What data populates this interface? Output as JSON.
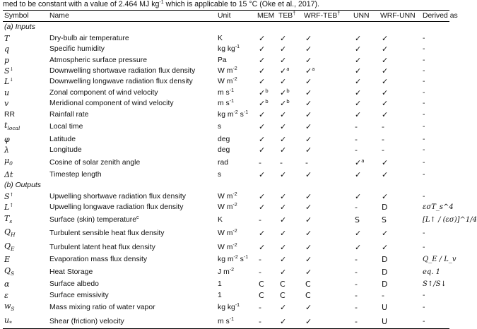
{
  "caption": {
    "text": "med to be constant with a value of 2.464 MJ kg",
    "sup": "-1",
    "text_after": " which is applicable to 15 °C (Oke et al., 2017)."
  },
  "headers": {
    "symbol": "Symbol",
    "name": "Name",
    "unit": "Unit",
    "mem": "MEM",
    "teb": "TEB",
    "teb_sup": "†",
    "wrf_teb": "WRF-TEB",
    "wrf_teb_sup": "†",
    "unn": "UNN",
    "wrf_unn": "WRF-UNN",
    "derived": "Derived as"
  },
  "sections": [
    {
      "title": "(a) Inputs",
      "rows": [
        {
          "symbol": "T",
          "name": "Dry-bulb air temperature",
          "unit": "K",
          "unit_sup": "",
          "mem": "✓",
          "teb": "✓",
          "wrf_teb": "✓",
          "unn": "✓",
          "wrf_unn": "✓",
          "derived": "-"
        },
        {
          "symbol": "q",
          "name": "Specific humidity",
          "unit": "kg kg",
          "unit_sup": "-1",
          "mem": "✓",
          "teb": "✓",
          "wrf_teb": "✓",
          "unn": "✓",
          "wrf_unn": "✓",
          "derived": "-"
        },
        {
          "symbol": "p",
          "name": "Atmospheric surface pressure",
          "unit": "Pa",
          "unit_sup": "",
          "mem": "✓",
          "teb": "✓",
          "wrf_teb": "✓",
          "unn": "✓",
          "wrf_unn": "✓",
          "derived": "-"
        },
        {
          "symbol": "S",
          "symbol_sup": "↓",
          "name": "Downwelling shortwave radiation flux density",
          "unit": "W m",
          "unit_sup": "-2",
          "mem": "✓",
          "teb": "✓",
          "teb_sup": "a",
          "wrf_teb": "✓",
          "wrf_teb_sup": "a",
          "unn": "✓",
          "wrf_unn": "✓",
          "derived": "-"
        },
        {
          "symbol": "L",
          "symbol_sup": "↓",
          "name": "Downwelling longwave radiation flux density",
          "unit": "W m",
          "unit_sup": "-2",
          "mem": "✓",
          "teb": "✓",
          "wrf_teb": "✓",
          "unn": "✓",
          "wrf_unn": "✓",
          "derived": "-"
        },
        {
          "symbol": "u",
          "name": "Zonal component of wind velocity",
          "unit": "m s",
          "unit_sup": "-1",
          "mem": "✓",
          "mem_sup": "b",
          "teb": "✓",
          "teb_sup": "b",
          "wrf_teb": "✓",
          "unn": "✓",
          "wrf_unn": "✓",
          "derived": "-"
        },
        {
          "symbol": "v",
          "name": "Meridional component of wind velocity",
          "unit": "m s",
          "unit_sup": "-1",
          "mem": "✓",
          "mem_sup": "b",
          "teb": "✓",
          "teb_sup": "b",
          "wrf_teb": "✓",
          "unn": "✓",
          "wrf_unn": "✓",
          "derived": "-"
        },
        {
          "symbol": "RR",
          "symbol_plain": true,
          "name": "Rainfall rate",
          "unit": "kg m",
          "unit_sup": "-2",
          "unit_after": " s",
          "unit_sup2": "-1",
          "mem": "✓",
          "teb": "✓",
          "wrf_teb": "✓",
          "unn": "✓",
          "wrf_unn": "✓",
          "derived": "-"
        },
        {
          "symbol": "t",
          "symbol_sub": "local",
          "name": "Local time",
          "unit": "s",
          "unit_sup": "",
          "mem": "✓",
          "teb": "✓",
          "wrf_teb": "✓",
          "unn": "-",
          "wrf_unn": "-",
          "derived": "-"
        },
        {
          "symbol": "φ",
          "name": "Latitude",
          "unit": "deg",
          "unit_sup": "",
          "mem": "✓",
          "teb": "✓",
          "wrf_teb": "✓",
          "unn": "-",
          "wrf_unn": "-",
          "derived": "-"
        },
        {
          "symbol": "λ",
          "name": "Longitude",
          "unit": "deg",
          "unit_sup": "",
          "mem": "✓",
          "teb": "✓",
          "wrf_teb": "✓",
          "unn": "-",
          "wrf_unn": "-",
          "derived": "-"
        },
        {
          "symbol": "μ",
          "symbol_sub": "0",
          "name": "Cosine of solar zenith angle",
          "unit": "rad",
          "unit_sup": "",
          "mem": "-",
          "teb": "-",
          "wrf_teb": "-",
          "unn": "✓",
          "unn_sup": "a",
          "wrf_unn": "✓",
          "derived": "-"
        },
        {
          "symbol": "Δt",
          "name": "Timestep length",
          "unit": "s",
          "unit_sup": "",
          "mem": "✓",
          "teb": "✓",
          "wrf_teb": "✓",
          "unn": "✓",
          "wrf_unn": "✓",
          "derived": "-"
        }
      ]
    },
    {
      "title": "(b) Outputs",
      "rows": [
        {
          "symbol": "S",
          "symbol_sup": "↑",
          "name": "Upwelling shortwave radiation flux density",
          "unit": "W m",
          "unit_sup": "-2",
          "mem": "✓",
          "teb": "✓",
          "wrf_teb": "✓",
          "unn": "✓",
          "wrf_unn": "✓",
          "derived": "-"
        },
        {
          "symbol": "L",
          "symbol_sup": "↑",
          "name": "Upwelling longwave radiation flux density",
          "unit": "W m",
          "unit_sup": "-2",
          "mem": "✓",
          "teb": "✓",
          "wrf_teb": "✓",
          "unn": "-",
          "wrf_unn": "D",
          "derived": "εσT_s^4"
        },
        {
          "symbol": "T",
          "symbol_sub": "s",
          "name": "Surface (skin) temperature",
          "name_sup": "c",
          "unit": "K",
          "unit_sup": "",
          "mem": "-",
          "teb": "✓",
          "wrf_teb": "✓",
          "unn": "S",
          "wrf_unn": "S",
          "derived": "[L↑ / (εσ)]^1/4"
        },
        {
          "symbol": "Q",
          "symbol_sub": "H",
          "name": "Turbulent sensible heat flux density",
          "unit": "W m",
          "unit_sup": "-2",
          "mem": "✓",
          "teb": "✓",
          "wrf_teb": "✓",
          "unn": "✓",
          "wrf_unn": "✓",
          "derived": "-"
        },
        {
          "symbol": "Q",
          "symbol_sub": "E",
          "name": "Turbulent latent heat flux density",
          "unit": "W m",
          "unit_sup": "-2",
          "mem": "✓",
          "teb": "✓",
          "wrf_teb": "✓",
          "unn": "✓",
          "wrf_unn": "✓",
          "derived": "-"
        },
        {
          "symbol": "E",
          "name": "Evaporation mass flux density",
          "unit": "kg m",
          "unit_sup": "-2",
          "unit_after": " s",
          "unit_sup2": "-1",
          "mem": "-",
          "teb": "✓",
          "wrf_teb": "✓",
          "unn": "-",
          "wrf_unn": "D",
          "derived": "Q_E / L_v"
        },
        {
          "symbol": "Q",
          "symbol_sub": "S",
          "name": "Heat Storage",
          "unit": "J m",
          "unit_sup": "-2",
          "mem": "-",
          "teb": "✓",
          "wrf_teb": "✓",
          "unn": "-",
          "wrf_unn": "D",
          "derived": "eq. 1"
        },
        {
          "symbol": "α",
          "name": "Surface albedo",
          "unit": "1",
          "unit_sup": "",
          "mem": "C",
          "teb": "C",
          "wrf_teb": "C",
          "unn": "-",
          "wrf_unn": "D",
          "derived": "S↑/S↓"
        },
        {
          "symbol": "ε",
          "name": "Surface emissivity",
          "unit": "1",
          "unit_sup": "",
          "mem": "C",
          "teb": "C",
          "wrf_teb": "C",
          "unn": "-",
          "wrf_unn": "-",
          "derived": "-"
        },
        {
          "symbol": "w",
          "symbol_sub": "S",
          "name": "Mass mixing ratio of water vapor",
          "unit": "kg kg",
          "unit_sup": "-1",
          "mem": "-",
          "teb": "✓",
          "wrf_teb": "✓",
          "unn": "-",
          "wrf_unn": "U",
          "derived": "-"
        },
        {
          "symbol": "u",
          "symbol_sub": "*",
          "name": "Shear (friction) velocity",
          "unit": "m s",
          "unit_sup": "-1",
          "mem": "-",
          "teb": "✓",
          "wrf_teb": "✓",
          "unn": "-",
          "wrf_unn": "U",
          "derived": "-"
        }
      ]
    }
  ]
}
